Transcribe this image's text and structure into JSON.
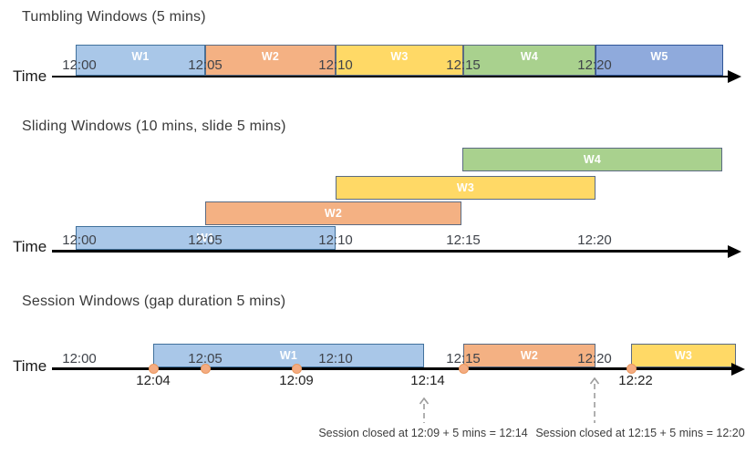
{
  "palette": {
    "blue": {
      "fill": "#A9C7E8",
      "border": "#41719C"
    },
    "orange": {
      "fill": "#F4B183",
      "border": "#5B6B82"
    },
    "yellow": {
      "fill": "#FFD966",
      "border": "#5B6B82"
    },
    "green": {
      "fill": "#A9D18E",
      "border": "#5B6B82"
    },
    "periwinkle": {
      "fill": "#8FAADC",
      "border": "#2F5597"
    }
  },
  "event_dot": {
    "fill": "#F4AC82",
    "border": "#E9985F"
  },
  "axis_color": "#000000",
  "diagrams": [
    {
      "id": "tumbling",
      "title": "Tumbling Windows (5 mins)",
      "axis_label": "Time",
      "ticks": [
        "12:00",
        "12:05",
        "12:10",
        "12:15",
        "12:20"
      ],
      "windows": [
        {
          "label": "W1",
          "from": "12:00",
          "to": "12:05",
          "color": "blue"
        },
        {
          "label": "W2",
          "from": "12:05",
          "to": "12:10",
          "color": "orange"
        },
        {
          "label": "W3",
          "from": "12:10",
          "to": "12:15",
          "color": "yellow"
        },
        {
          "label": "W4",
          "from": "12:15",
          "to": "12:20",
          "color": "green"
        },
        {
          "label": "W5",
          "from": "12:20",
          "to": "",
          "color": "periwinkle"
        }
      ]
    },
    {
      "id": "sliding",
      "title": "Sliding Windows (10 mins, slide 5 mins)",
      "axis_label": "Time",
      "ticks": [
        "12:00",
        "12:05",
        "12:10",
        "12:15",
        "12:20"
      ],
      "windows": [
        {
          "label": "W1",
          "from": "12:00",
          "to": "12:10",
          "color": "blue"
        },
        {
          "label": "W2",
          "from": "12:05",
          "to": "12:15",
          "color": "orange"
        },
        {
          "label": "W3",
          "from": "12:10",
          "to": "12:20",
          "color": "yellow"
        },
        {
          "label": "W4",
          "from": "12:15",
          "to": "",
          "color": "green"
        }
      ]
    },
    {
      "id": "session",
      "title": "Session Windows (gap duration 5 mins)",
      "axis_label": "Time",
      "ticks": [
        "12:00",
        "12:05",
        "12:10",
        "12:15",
        "12:20"
      ],
      "windows": [
        {
          "label": "W1",
          "from": "12:04",
          "to": "12:14",
          "color": "blue"
        },
        {
          "label": "W2",
          "from": "12:15",
          "to": "12:20",
          "color": "orange"
        },
        {
          "label": "W3",
          "from": "12:22",
          "to": "",
          "color": "yellow"
        }
      ],
      "events": [
        "12:04",
        "",
        "12:09",
        "12:15",
        "12:22"
      ],
      "event_labels": [
        "12:04",
        "12:09",
        "12:14",
        "12:22"
      ],
      "annotations": [
        "Session closed at 12:09 + 5 mins = 12:14",
        "Session closed at 12:15 + 5 mins = 12:20"
      ]
    }
  ]
}
